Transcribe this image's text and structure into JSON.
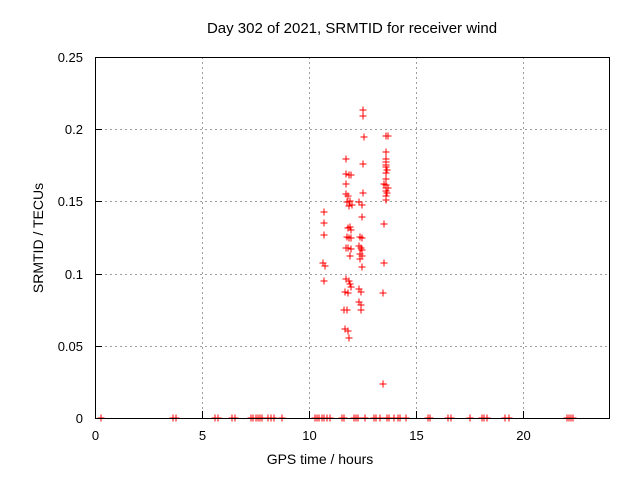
{
  "figure": {
    "background": "#ffffff"
  },
  "chart_data": {
    "type": "scatter",
    "title": "Day 302 of 2021, SRMTID for receiver wind",
    "xlabel": "GPS time / hours",
    "ylabel": "SRMTID / TECUs",
    "xlim": [
      0,
      24
    ],
    "ylim": [
      0,
      0.25
    ],
    "x_ticks": [
      0,
      5,
      10,
      15,
      20
    ],
    "x_tick_labels": [
      "0",
      "5",
      "10",
      "15",
      "20"
    ],
    "y_ticks": [
      0,
      0.05,
      0.1,
      0.15,
      0.2,
      0.25
    ],
    "y_tick_labels": [
      "0",
      "0.05",
      "0.1",
      "0.15",
      "0.2",
      "0.25"
    ],
    "grid": true,
    "legend": "none",
    "marker": {
      "shape": "plus",
      "size": 7,
      "color": "#ff0000"
    },
    "colors": {
      "axis": "#000000",
      "grid": "#9e9e9e",
      "text": "#000000"
    },
    "series": [
      {
        "name": "SRMTID",
        "points": [
          [
            10.71,
            0.143
          ],
          [
            10.71,
            0.135
          ],
          [
            10.71,
            0.127
          ],
          [
            10.63,
            0.107
          ],
          [
            10.73,
            0.1055
          ],
          [
            10.71,
            0.095
          ],
          [
            11.72,
            0.1795
          ],
          [
            11.72,
            0.169
          ],
          [
            11.85,
            0.1685
          ],
          [
            11.94,
            0.168
          ],
          [
            11.72,
            0.162
          ],
          [
            11.72,
            0.155
          ],
          [
            11.83,
            0.1535
          ],
          [
            11.92,
            0.1505
          ],
          [
            11.77,
            0.1495
          ],
          [
            11.99,
            0.1475
          ],
          [
            11.88,
            0.1465
          ],
          [
            11.92,
            0.1325
          ],
          [
            11.8,
            0.1315
          ],
          [
            11.97,
            0.13
          ],
          [
            11.77,
            0.1255
          ],
          [
            11.97,
            0.125
          ],
          [
            11.88,
            0.1245
          ],
          [
            11.83,
            0.118
          ],
          [
            11.72,
            0.1175
          ],
          [
            11.96,
            0.117
          ],
          [
            11.92,
            0.112
          ],
          [
            11.72,
            0.0965
          ],
          [
            11.85,
            0.095
          ],
          [
            11.89,
            0.093
          ],
          [
            11.94,
            0.091
          ],
          [
            11.67,
            0.0875
          ],
          [
            11.8,
            0.0865
          ],
          [
            11.75,
            0.075
          ],
          [
            11.64,
            0.0745
          ],
          [
            11.69,
            0.0615
          ],
          [
            11.8,
            0.0605
          ],
          [
            11.85,
            0.0555
          ],
          [
            12.53,
            0.2135
          ],
          [
            12.53,
            0.209
          ],
          [
            12.55,
            0.1945
          ],
          [
            12.5,
            0.176
          ],
          [
            12.5,
            0.156
          ],
          [
            12.34,
            0.1495
          ],
          [
            12.45,
            0.1475
          ],
          [
            12.45,
            0.139
          ],
          [
            12.39,
            0.1255
          ],
          [
            12.47,
            0.1245
          ],
          [
            12.34,
            0.119
          ],
          [
            12.44,
            0.1175
          ],
          [
            12.48,
            0.1165
          ],
          [
            12.39,
            0.1135
          ],
          [
            12.45,
            0.112
          ],
          [
            12.39,
            0.11
          ],
          [
            12.48,
            0.1045
          ],
          [
            12.34,
            0.089
          ],
          [
            12.44,
            0.087
          ],
          [
            12.34,
            0.08
          ],
          [
            12.44,
            0.0785
          ],
          [
            12.42,
            0.0745
          ],
          [
            13.57,
            0.195
          ],
          [
            13.68,
            0.195
          ],
          [
            13.57,
            0.1845
          ],
          [
            13.57,
            0.1795
          ],
          [
            13.57,
            0.177
          ],
          [
            13.6,
            0.175
          ],
          [
            13.57,
            0.1735
          ],
          [
            13.62,
            0.1715
          ],
          [
            13.57,
            0.1695
          ],
          [
            13.57,
            0.1655
          ],
          [
            13.51,
            0.162
          ],
          [
            13.6,
            0.1615
          ],
          [
            13.57,
            0.1595
          ],
          [
            13.68,
            0.159
          ],
          [
            13.57,
            0.1575
          ],
          [
            13.62,
            0.1555
          ],
          [
            13.57,
            0.1535
          ],
          [
            13.59,
            0.151
          ],
          [
            13.51,
            0.1345
          ],
          [
            13.51,
            0.1075
          ],
          [
            13.43,
            0.0865
          ],
          [
            13.46,
            0.0235
          ],
          [
            0.3,
            0
          ],
          [
            3.62,
            0
          ],
          [
            3.78,
            0
          ],
          [
            5.62,
            0
          ],
          [
            5.72,
            0
          ],
          [
            6.4,
            0
          ],
          [
            6.55,
            0
          ],
          [
            7.3,
            0
          ],
          [
            7.4,
            0
          ],
          [
            7.5,
            0
          ],
          [
            7.6,
            0
          ],
          [
            7.72,
            0
          ],
          [
            7.8,
            0
          ],
          [
            8.1,
            0
          ],
          [
            8.22,
            0
          ],
          [
            8.35,
            0
          ],
          [
            8.75,
            0
          ],
          [
            10.28,
            0
          ],
          [
            10.38,
            0
          ],
          [
            10.48,
            0
          ],
          [
            10.58,
            0
          ],
          [
            10.68,
            0
          ],
          [
            10.85,
            0
          ],
          [
            10.95,
            0
          ],
          [
            11.52,
            0
          ],
          [
            11.62,
            0
          ],
          [
            12.08,
            0
          ],
          [
            12.18,
            0
          ],
          [
            12.3,
            0
          ],
          [
            12.6,
            0
          ],
          [
            13.02,
            0
          ],
          [
            13.12,
            0
          ],
          [
            13.33,
            0
          ],
          [
            13.62,
            0
          ],
          [
            13.72,
            0
          ],
          [
            13.97,
            0
          ],
          [
            14.13,
            0
          ],
          [
            14.24,
            0
          ],
          [
            14.52,
            0
          ],
          [
            15.56,
            0
          ],
          [
            15.66,
            0
          ],
          [
            16.5,
            0
          ],
          [
            16.62,
            0
          ],
          [
            17.5,
            0
          ],
          [
            18.08,
            0
          ],
          [
            18.18,
            0
          ],
          [
            18.3,
            0
          ],
          [
            19.15,
            0
          ],
          [
            19.32,
            0
          ],
          [
            22.02,
            0
          ],
          [
            22.12,
            0
          ],
          [
            22.22,
            0
          ],
          [
            22.32,
            0
          ]
        ]
      }
    ]
  }
}
